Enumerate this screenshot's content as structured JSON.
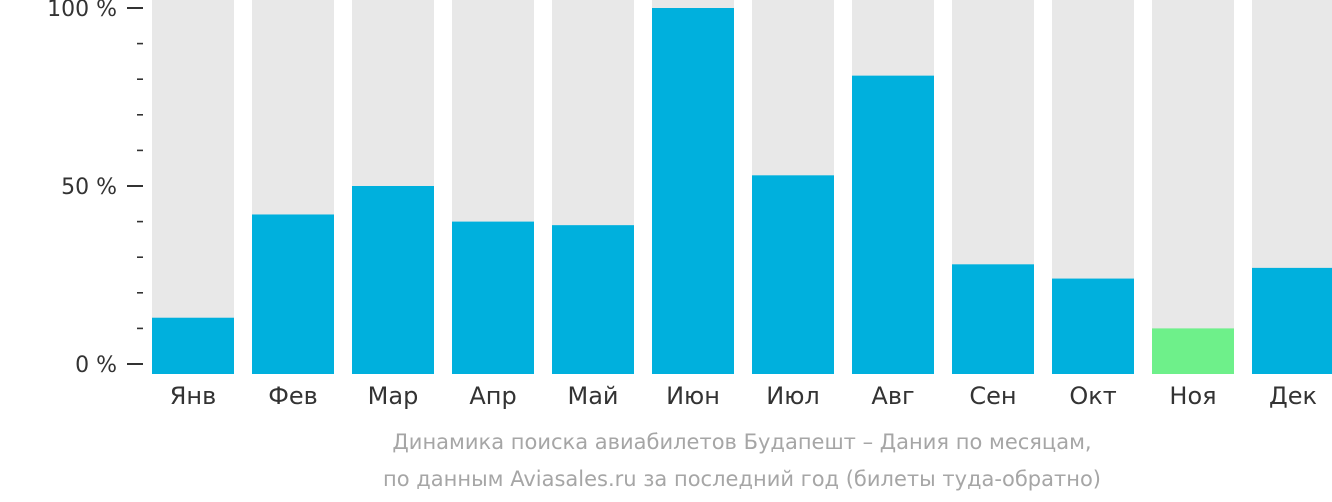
{
  "chart_data": {
    "type": "bar",
    "title": "",
    "xlabel": "",
    "ylabel": "",
    "ylim": [
      0,
      100
    ],
    "y_ticks": [
      {
        "value": 0,
        "label": "0 %"
      },
      {
        "value": 50,
        "label": "50 %"
      },
      {
        "value": 100,
        "label": "100 %"
      }
    ],
    "categories": [
      "Янв",
      "Фев",
      "Мар",
      "Апр",
      "Май",
      "Июн",
      "Июл",
      "Авг",
      "Сен",
      "Окт",
      "Ноя",
      "Дек"
    ],
    "values": [
      13,
      42,
      50,
      40,
      39,
      100,
      53,
      81,
      28,
      24,
      10,
      27
    ],
    "highlight_index": 10,
    "colors": {
      "bar": "#00b0dd",
      "highlight": "#6ef08a",
      "background_bar": "#e8e8e8",
      "axis_text": "#333333",
      "caption_text": "#a6a6a6"
    },
    "caption_lines": [
      "Динамика поиска авиабилетов Будапешт – Дания по месяцам,",
      "по данным Aviasales.ru за последний год (билеты туда-обратно)"
    ]
  }
}
